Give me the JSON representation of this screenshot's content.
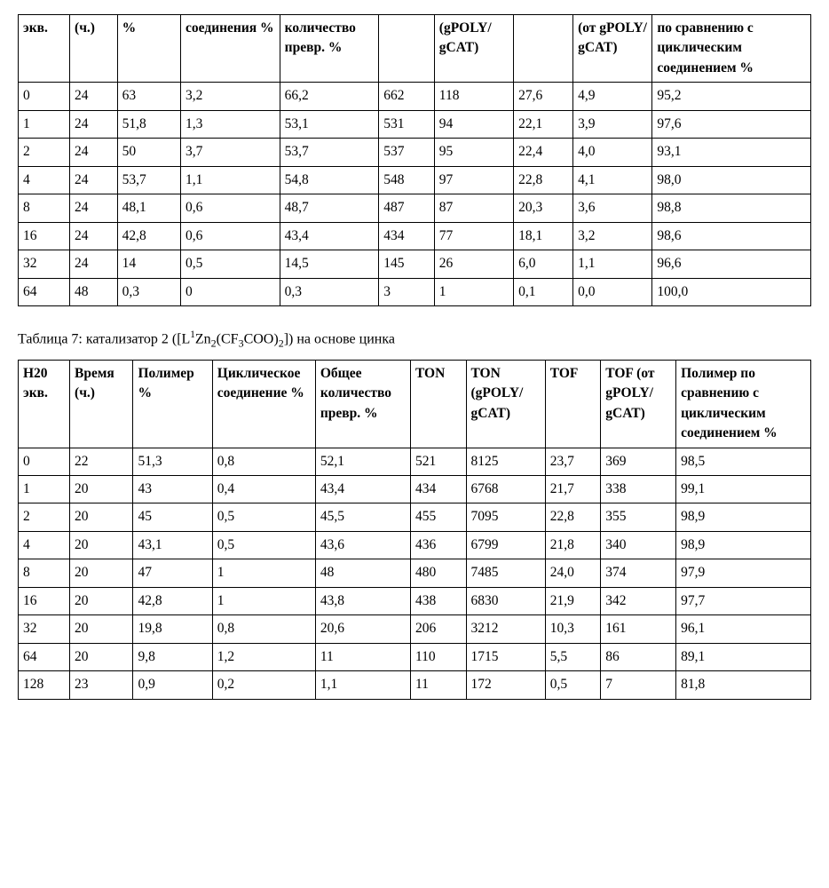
{
  "table1": {
    "col_widths_pct": [
      6.5,
      6,
      8,
      12.5,
      12.5,
      7,
      10,
      7.5,
      10,
      20
    ],
    "headers": [
      "экв.",
      "(ч.)",
      "%",
      "соединения %",
      "количество превр. %",
      "",
      "(gPOLY/ gCAT)",
      "",
      "(от gPOLY/ gCAT)",
      "по сравнению с циклическим соединением %"
    ],
    "rows": [
      [
        "0",
        "24",
        "63",
        "3,2",
        "66,2",
        "662",
        "118",
        "27,6",
        "4,9",
        "95,2"
      ],
      [
        "1",
        "24",
        "51,8",
        "1,3",
        "53,1",
        "531",
        "94",
        "22,1",
        "3,9",
        "97,6"
      ],
      [
        "2",
        "24",
        "50",
        "3,7",
        "53,7",
        "537",
        "95",
        "22,4",
        "4,0",
        "93,1"
      ],
      [
        "4",
        "24",
        "53,7",
        "1,1",
        "54,8",
        "548",
        "97",
        "22,8",
        "4,1",
        "98,0"
      ],
      [
        "8",
        "24",
        "48,1",
        "0,6",
        "48,7",
        "487",
        "87",
        "20,3",
        "3,6",
        "98,8"
      ],
      [
        "16",
        "24",
        "42,8",
        "0,6",
        "43,4",
        "434",
        "77",
        "18,1",
        "3,2",
        "98,6"
      ],
      [
        "32",
        "24",
        "14",
        "0,5",
        "14,5",
        "145",
        "26",
        "6,0",
        "1,1",
        "96,6"
      ],
      [
        "64",
        "48",
        "0,3",
        "0",
        "0,3",
        "3",
        "1",
        "0,1",
        "0,0",
        "100,0"
      ]
    ]
  },
  "caption2": {
    "prefix": "Таблица 7: катализатор 2 ([L",
    "sup1": "1",
    "mid1": "Zn",
    "sub1": "2",
    "mid2": "(CF",
    "sub2": "3",
    "mid3": "COO)",
    "sub3": "2",
    "suffix": "]) на основе цинка"
  },
  "table2": {
    "col_widths_pct": [
      6.5,
      8,
      10,
      13,
      12,
      7,
      10,
      7,
      9.5,
      17
    ],
    "headers": [
      "H20 экв.",
      "Время (ч.)",
      "Полимер %",
      "Циклическое соединение %",
      "Общее количество превр. %",
      "TON",
      "TON (gPOLY/ gCAT)",
      "TOF",
      "TOF (от gPOLY/ gCAT)",
      "Полимер по сравнению с циклическим соединением %"
    ],
    "rows": [
      [
        "0",
        "22",
        "51,3",
        "0,8",
        "52,1",
        "521",
        "8125",
        "23,7",
        "369",
        "98,5"
      ],
      [
        "1",
        "20",
        "43",
        "0,4",
        "43,4",
        "434",
        "6768",
        "21,7",
        "338",
        "99,1"
      ],
      [
        "2",
        "20",
        "45",
        "0,5",
        "45,5",
        "455",
        "7095",
        "22,8",
        "355",
        "98,9"
      ],
      [
        "4",
        "20",
        "43,1",
        "0,5",
        "43,6",
        "436",
        "6799",
        "21,8",
        "340",
        "98,9"
      ],
      [
        "8",
        "20",
        "47",
        "1",
        "48",
        "480",
        "7485",
        "24,0",
        "374",
        "97,9"
      ],
      [
        "16",
        "20",
        "42,8",
        "1",
        "43,8",
        "438",
        "6830",
        "21,9",
        "342",
        "97,7"
      ],
      [
        "32",
        "20",
        "19,8",
        "0,8",
        "20,6",
        "206",
        "3212",
        "10,3",
        "161",
        "96,1"
      ],
      [
        "64",
        "20",
        "9,8",
        "1,2",
        "11",
        "110",
        "1715",
        "5,5",
        "86",
        "89,1"
      ],
      [
        "128",
        "23",
        "0,9",
        "0,2",
        "1,1",
        "11",
        "172",
        "0,5",
        "7",
        "81,8"
      ]
    ]
  }
}
